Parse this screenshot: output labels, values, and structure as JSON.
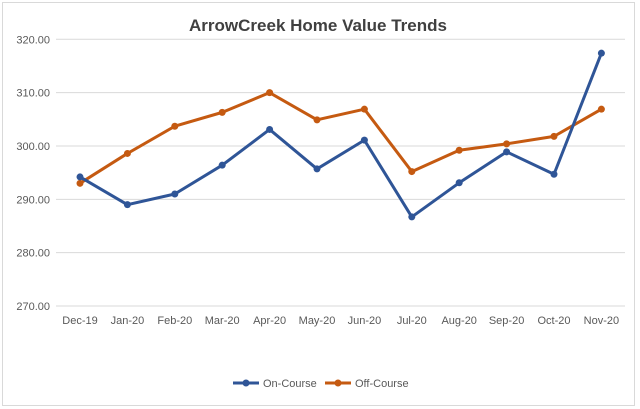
{
  "chart_data": {
    "type": "line",
    "title": "ArrowCreek Home Value Trends",
    "xlabel": "",
    "ylabel": "",
    "categories": [
      "Dec-19",
      "Jan-20",
      "Feb-20",
      "Mar-20",
      "Apr-20",
      "May-20",
      "Jun-20",
      "Jul-20",
      "Aug-20",
      "Sep-20",
      "Oct-20",
      "Nov-20"
    ],
    "ylim": [
      270,
      320
    ],
    "yticks": [
      "270.00",
      "280.00",
      "290.00",
      "300.00",
      "310.00",
      "320.00"
    ],
    "grid": true,
    "legend_position": "bottom",
    "series": [
      {
        "name": "On-Course",
        "color": "#2F5597",
        "values": [
          294.2,
          289.0,
          291.0,
          296.4,
          303.1,
          295.7,
          301.1,
          286.7,
          293.1,
          298.9,
          294.7,
          317.4
        ]
      },
      {
        "name": "Off-Course",
        "color": "#C55A11",
        "values": [
          293.0,
          298.6,
          303.7,
          306.3,
          310.0,
          304.9,
          306.9,
          295.2,
          299.2,
          300.4,
          301.8,
          306.9
        ]
      }
    ]
  }
}
